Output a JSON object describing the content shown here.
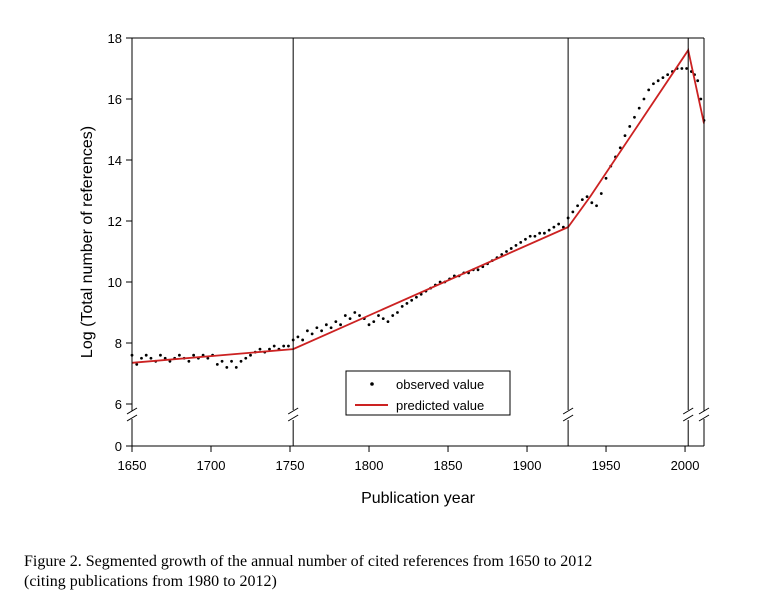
{
  "caption": {
    "line1": "Figure 2. Segmented growth of the annual number of cited references from 1650 to 2012",
    "line2": "(citing publications from 1980 to 2012)"
  },
  "chart_data": {
    "type": "scatter",
    "xlabel": "Publication year",
    "ylabel": "Log (Total number of references)",
    "xlim": [
      1650,
      2012
    ],
    "ylim_upper": [
      6,
      18
    ],
    "y_broken_axis": true,
    "y_lower_tick": 0,
    "x_ticks": [
      1650,
      1700,
      1750,
      1800,
      1850,
      1900,
      1950,
      2000
    ],
    "y_ticks": [
      6,
      8,
      10,
      12,
      14,
      16,
      18
    ],
    "breakpoints": [
      1752,
      1926,
      2002,
      2012
    ],
    "grid": false,
    "legend_position": "bottom-center",
    "legend": [
      {
        "label": "observed value",
        "marker": "dot",
        "color": "#000000"
      },
      {
        "label": "predicted value",
        "marker": "line",
        "color": "#cc2222"
      }
    ],
    "series": [
      {
        "name": "observed value",
        "x": [
          1650,
          1653,
          1656,
          1659,
          1662,
          1665,
          1668,
          1671,
          1674,
          1677,
          1680,
          1683,
          1686,
          1689,
          1692,
          1695,
          1698,
          1701,
          1704,
          1707,
          1710,
          1713,
          1716,
          1719,
          1722,
          1725,
          1728,
          1731,
          1734,
          1737,
          1740,
          1743,
          1746,
          1749,
          1752,
          1755,
          1758,
          1761,
          1764,
          1767,
          1770,
          1773,
          1776,
          1779,
          1782,
          1785,
          1788,
          1791,
          1794,
          1797,
          1800,
          1803,
          1806,
          1809,
          1812,
          1815,
          1818,
          1821,
          1824,
          1827,
          1830,
          1833,
          1836,
          1839,
          1842,
          1845,
          1848,
          1851,
          1854,
          1857,
          1860,
          1863,
          1866,
          1869,
          1872,
          1875,
          1878,
          1881,
          1884,
          1887,
          1890,
          1893,
          1896,
          1899,
          1902,
          1905,
          1908,
          1911,
          1914,
          1917,
          1920,
          1923,
          1926,
          1929,
          1932,
          1935,
          1938,
          1941,
          1944,
          1947,
          1950,
          1953,
          1956,
          1959,
          1962,
          1965,
          1968,
          1971,
          1974,
          1977,
          1980,
          1983,
          1986,
          1989,
          1992,
          1995,
          1998,
          2001,
          2004,
          2006,
          2008,
          2010,
          2012
        ],
        "y": [
          7.6,
          7.3,
          7.5,
          7.6,
          7.5,
          7.4,
          7.6,
          7.5,
          7.4,
          7.5,
          7.6,
          7.5,
          7.4,
          7.6,
          7.5,
          7.6,
          7.5,
          7.6,
          7.3,
          7.4,
          7.2,
          7.4,
          7.2,
          7.4,
          7.5,
          7.6,
          7.7,
          7.8,
          7.7,
          7.8,
          7.9,
          7.8,
          7.9,
          7.9,
          8.1,
          8.2,
          8.1,
          8.4,
          8.3,
          8.5,
          8.4,
          8.6,
          8.5,
          8.7,
          8.6,
          8.9,
          8.8,
          9.0,
          8.9,
          8.8,
          8.6,
          8.7,
          8.9,
          8.8,
          8.7,
          8.9,
          9.0,
          9.2,
          9.3,
          9.4,
          9.5,
          9.6,
          9.7,
          9.8,
          9.9,
          10.0,
          10.0,
          10.1,
          10.2,
          10.2,
          10.3,
          10.3,
          10.4,
          10.4,
          10.5,
          10.6,
          10.7,
          10.8,
          10.9,
          11.0,
          11.1,
          11.2,
          11.3,
          11.4,
          11.5,
          11.5,
          11.6,
          11.6,
          11.7,
          11.8,
          11.9,
          11.8,
          12.1,
          12.3,
          12.5,
          12.7,
          12.8,
          12.6,
          12.5,
          12.9,
          13.4,
          13.8,
          14.1,
          14.4,
          14.8,
          15.1,
          15.4,
          15.7,
          16.0,
          16.3,
          16.5,
          16.6,
          16.7,
          16.8,
          16.9,
          17.0,
          17.0,
          17.0,
          16.9,
          16.8,
          16.6,
          16.0,
          15.3
        ]
      },
      {
        "name": "predicted value",
        "x": [
          1650,
          1752,
          1926,
          1940,
          2002,
          2012
        ],
        "y": [
          7.35,
          7.8,
          11.8,
          12.8,
          17.6,
          15.2
        ]
      }
    ]
  }
}
